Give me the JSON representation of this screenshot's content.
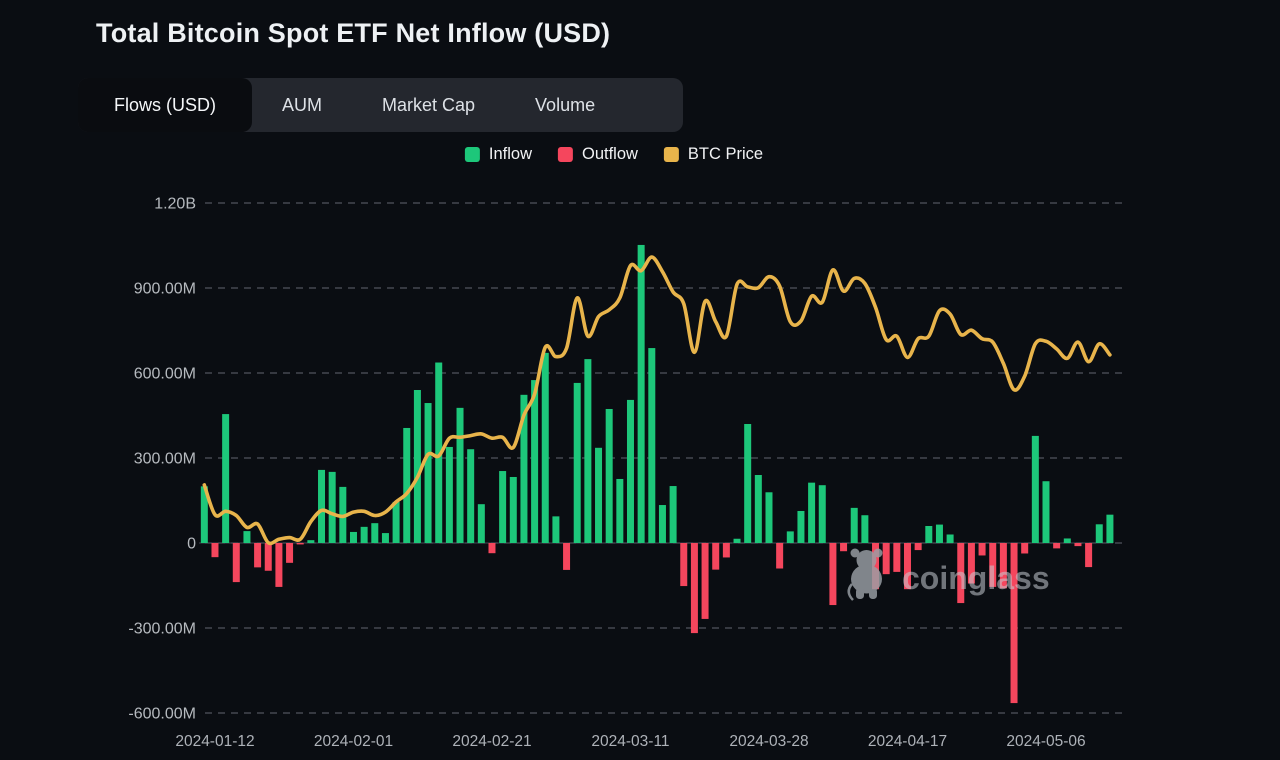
{
  "header": {
    "title": "Total Bitcoin Spot ETF Net Inflow (USD)"
  },
  "tabs": {
    "items": [
      {
        "label": "Flows (USD)",
        "active": true
      },
      {
        "label": "AUM",
        "active": false
      },
      {
        "label": "Market Cap",
        "active": false
      },
      {
        "label": "Volume",
        "active": false
      }
    ]
  },
  "legend": {
    "items": [
      {
        "label": "Inflow",
        "color": "#1dc77a"
      },
      {
        "label": "Outflow",
        "color": "#f5465d"
      },
      {
        "label": "BTC Price",
        "color": "#e8b44b"
      }
    ]
  },
  "watermark": {
    "text": "coinglass",
    "icon": "coinglass-bull-icon"
  },
  "chart_data": {
    "type": "bar+line",
    "title": "Total Bitcoin Spot ETF Net Inflow (USD)",
    "grid": {
      "style": "dashed",
      "color": "#41454d"
    },
    "legend_position": "top-center",
    "y_axis": {
      "unit": "USD",
      "ticks": [
        {
          "value": 1200,
          "label": "1.20B"
        },
        {
          "value": 900,
          "label": "900.00M"
        },
        {
          "value": 600,
          "label": "600.00M"
        },
        {
          "value": 300,
          "label": "300.00M"
        },
        {
          "value": 0,
          "label": "0"
        },
        {
          "value": -300,
          "label": "-300.00M"
        },
        {
          "value": -600,
          "label": "-600.00M"
        }
      ]
    },
    "x_axis": {
      "tick_indices": [
        1,
        14,
        27,
        40,
        53,
        66,
        79
      ],
      "tick_labels": [
        "2024-01-12",
        "2024-02-01",
        "2024-02-21",
        "2024-03-11",
        "2024-03-28",
        "2024-04-17",
        "2024-05-06"
      ]
    },
    "price_axis_hidden_range_usd": [
      19470,
      79470
    ],
    "x": [
      "2024-01-11",
      "2024-01-12",
      "2024-01-16",
      "2024-01-17",
      "2024-01-18",
      "2024-01-19",
      "2024-01-22",
      "2024-01-23",
      "2024-01-24",
      "2024-01-25",
      "2024-01-26",
      "2024-01-29",
      "2024-01-30",
      "2024-01-31",
      "2024-02-01",
      "2024-02-02",
      "2024-02-05",
      "2024-02-06",
      "2024-02-07",
      "2024-02-08",
      "2024-02-09",
      "2024-02-12",
      "2024-02-13",
      "2024-02-14",
      "2024-02-15",
      "2024-02-16",
      "2024-02-20",
      "2024-02-21",
      "2024-02-22",
      "2024-02-23",
      "2024-02-26",
      "2024-02-27",
      "2024-02-28",
      "2024-02-29",
      "2024-03-01",
      "2024-03-04",
      "2024-03-05",
      "2024-03-06",
      "2024-03-07",
      "2024-03-08",
      "2024-03-11",
      "2024-03-12",
      "2024-03-13",
      "2024-03-14",
      "2024-03-15",
      "2024-03-18",
      "2024-03-19",
      "2024-03-20",
      "2024-03-21",
      "2024-03-22",
      "2024-03-25",
      "2024-03-26",
      "2024-03-27",
      "2024-03-28",
      "2024-04-01",
      "2024-04-02",
      "2024-04-03",
      "2024-04-04",
      "2024-04-05",
      "2024-04-08",
      "2024-04-09",
      "2024-04-10",
      "2024-04-11",
      "2024-04-12",
      "2024-04-15",
      "2024-04-16",
      "2024-04-17",
      "2024-04-18",
      "2024-04-19",
      "2024-04-22",
      "2024-04-23",
      "2024-04-24",
      "2024-04-25",
      "2024-04-26",
      "2024-04-29",
      "2024-04-30",
      "2024-05-01",
      "2024-05-02",
      "2024-05-03",
      "2024-05-06",
      "2024-05-07",
      "2024-05-08",
      "2024-05-09",
      "2024-05-10",
      "2024-05-13",
      "2024-05-14"
    ],
    "series": [
      {
        "name": "Net Flow",
        "type": "bar",
        "unit": "million USD",
        "color_positive": "#1dc77a",
        "color_negative": "#f5465d",
        "values": [
          200,
          -50,
          455,
          -138,
          42,
          -86,
          -98,
          -155,
          -70,
          -5,
          10,
          258,
          251,
          198,
          39,
          57,
          70,
          35,
          145,
          406,
          540,
          494,
          637,
          339,
          477,
          331,
          137,
          -36,
          254,
          233,
          523,
          575,
          671,
          94,
          -95,
          565,
          649,
          336,
          473,
          226,
          505,
          1052,
          688,
          134,
          201,
          -152,
          -318,
          -268,
          -94,
          -51,
          15,
          420,
          240,
          179,
          -90,
          41,
          113,
          213,
          204,
          -219,
          -29,
          124,
          98,
          -163,
          -110,
          -102,
          -163,
          -25,
          60,
          65,
          30,
          -212,
          -143,
          -44,
          -155,
          -160,
          -565,
          -37,
          378,
          218,
          -19,
          16,
          -11,
          -85,
          66,
          100
        ]
      },
      {
        "name": "BTC Price",
        "type": "line",
        "unit": "USD",
        "color": "#e8b44b",
        "axis": "hidden",
        "values": [
          46300,
          42800,
          43200,
          42700,
          41300,
          41700,
          39500,
          39900,
          40100,
          39900,
          42000,
          43300,
          42900,
          42600,
          43100,
          43200,
          42700,
          43100,
          44300,
          45300,
          47200,
          49900,
          49700,
          51800,
          51900,
          52100,
          52300,
          51800,
          51900,
          50700,
          54500,
          57000,
          62500,
          61400,
          62400,
          68300,
          63800,
          66100,
          66900,
          68300,
          72100,
          71500,
          73100,
          71400,
          69000,
          67600,
          61900,
          67900,
          65500,
          63800,
          69900,
          69600,
          69500,
          70800,
          69700,
          65500,
          65600,
          68500,
          67800,
          71600,
          69100,
          70600,
          70000,
          67200,
          63400,
          63800,
          61300,
          63500,
          63800,
          66800,
          66400,
          64000,
          64500,
          63500,
          63100,
          60600,
          57500,
          59100,
          62900,
          63200,
          62300,
          61200,
          63100,
          60800,
          62900,
          61600
        ]
      }
    ]
  }
}
